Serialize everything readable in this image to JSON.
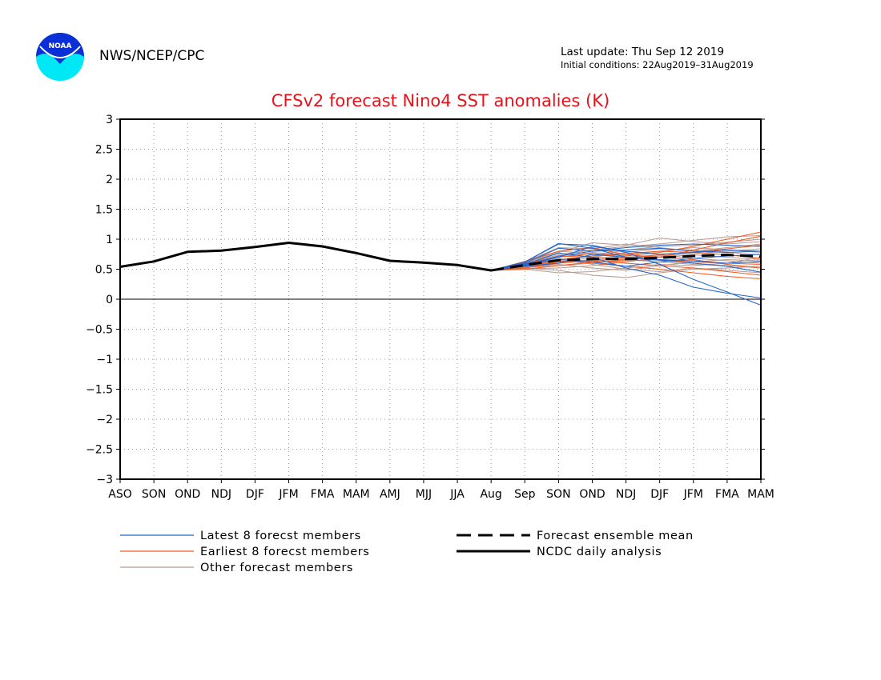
{
  "header": {
    "agency": "NWS/NCEP/CPC",
    "last_update": "Last update: Thu Sep 12 2019",
    "initial_conditions": "Initial conditions: 22Aug2019–31Aug2019",
    "logo_icon": "noaa-logo-icon",
    "logo_text": "NOAA"
  },
  "chart_data": {
    "type": "line",
    "title": "CFSv2 forecast Nino4 SST anomalies (K)",
    "xlabel": "",
    "ylabel": "",
    "categories": [
      "ASO",
      "SON",
      "OND",
      "NDJ",
      "DJF",
      "JFM",
      "FMA",
      "MAM",
      "AMJ",
      "MJJ",
      "JJA",
      "Aug",
      "Sep",
      "SON",
      "OND",
      "NDJ",
      "DJF",
      "JFM",
      "FMA",
      "MAM"
    ],
    "ylim": [
      -3,
      3
    ],
    "yticks": [
      "3",
      "2.5",
      "2",
      "1.5",
      "1",
      "0.5",
      "0",
      "−0.5",
      "−1",
      "−1.5",
      "−2",
      "−2.5",
      "−3"
    ],
    "ytick_values": [
      3,
      2.5,
      2,
      1.5,
      1,
      0.5,
      0,
      -0.5,
      -1,
      -1.5,
      -2,
      -2.5,
      -3
    ],
    "grid": true,
    "reference_line": 0,
    "series": [
      {
        "name": "NCDC daily analysis",
        "style": "solid-thick",
        "color": "#000000",
        "x": [
          0,
          1,
          2,
          3,
          4,
          5,
          6,
          7,
          8,
          9,
          10,
          11
        ],
        "values": [
          0.54,
          0.63,
          0.79,
          0.81,
          0.87,
          0.94,
          0.88,
          0.77,
          0.64,
          0.61,
          0.57,
          0.48
        ]
      },
      {
        "name": "Forecast ensemble mean",
        "style": "dashed-thick",
        "color": "#000000",
        "x": [
          11,
          12,
          13,
          14,
          15,
          16,
          17,
          18,
          19
        ],
        "values": [
          0.48,
          0.57,
          0.65,
          0.67,
          0.67,
          0.69,
          0.72,
          0.74,
          0.71
        ]
      },
      {
        "name": "Latest 8 forecst members",
        "style": "thin",
        "color": "#2266cc",
        "members": [
          {
            "x": [
              11,
              12,
              13,
              14,
              15,
              16,
              17,
              18,
              19
            ],
            "values": [
              0.48,
              0.62,
              0.92,
              0.9,
              0.78,
              0.58,
              0.33,
              0.12,
              -0.1
            ]
          },
          {
            "x": [
              11,
              12,
              13,
              14,
              15,
              16,
              17,
              18,
              19
            ],
            "values": [
              0.48,
              0.58,
              0.77,
              0.7,
              0.52,
              0.4,
              0.2,
              0.1,
              0.02
            ]
          },
          {
            "x": [
              11,
              12,
              13,
              14,
              15,
              16,
              17,
              18,
              19
            ],
            "values": [
              0.48,
              0.6,
              0.85,
              0.8,
              0.82,
              0.85,
              0.8,
              0.78,
              0.8
            ]
          },
          {
            "x": [
              11,
              12,
              13,
              14,
              15,
              16,
              17,
              18,
              19
            ],
            "values": [
              0.48,
              0.55,
              0.6,
              0.75,
              0.7,
              0.65,
              0.6,
              0.55,
              0.45
            ]
          },
          {
            "x": [
              11,
              12,
              13,
              14,
              15,
              16,
              17,
              18,
              19
            ],
            "values": [
              0.48,
              0.62,
              0.93,
              0.85,
              0.7,
              0.66,
              0.64,
              0.6,
              0.63
            ]
          },
          {
            "x": [
              11,
              12,
              13,
              14,
              15,
              16,
              17,
              18,
              19
            ],
            "values": [
              0.48,
              0.57,
              0.7,
              0.88,
              0.8,
              0.75,
              0.78,
              0.82,
              0.8
            ]
          },
          {
            "x": [
              11,
              12,
              13,
              14,
              15,
              16,
              17,
              18,
              19
            ],
            "values": [
              0.48,
              0.59,
              0.66,
              0.62,
              0.55,
              0.62,
              0.68,
              0.72,
              0.75
            ]
          },
          {
            "x": [
              11,
              12,
              13,
              14,
              15,
              16,
              17,
              18,
              19
            ],
            "values": [
              0.48,
              0.56,
              0.72,
              0.8,
              0.86,
              0.9,
              0.92,
              0.9,
              0.88
            ]
          }
        ]
      },
      {
        "name": "Earliest 8 forecst members",
        "style": "thin",
        "color": "#f05a22",
        "members": [
          {
            "x": [
              11,
              12,
              13,
              14,
              15,
              16,
              17,
              18,
              19
            ],
            "values": [
              0.48,
              0.6,
              0.7,
              0.76,
              0.72,
              0.78,
              0.88,
              1.0,
              1.12
            ]
          },
          {
            "x": [
              11,
              12,
              13,
              14,
              15,
              16,
              17,
              18,
              19
            ],
            "values": [
              0.48,
              0.54,
              0.62,
              0.65,
              0.66,
              0.7,
              0.82,
              0.94,
              1.05
            ]
          },
          {
            "x": [
              11,
              12,
              13,
              14,
              15,
              16,
              17,
              18,
              19
            ],
            "values": [
              0.48,
              0.52,
              0.6,
              0.64,
              0.6,
              0.56,
              0.52,
              0.46,
              0.4
            ]
          },
          {
            "x": [
              11,
              12,
              13,
              14,
              15,
              16,
              17,
              18,
              19
            ],
            "values": [
              0.48,
              0.63,
              0.8,
              0.86,
              0.74,
              0.7,
              0.66,
              0.58,
              0.52
            ]
          },
          {
            "x": [
              11,
              12,
              13,
              14,
              15,
              16,
              17,
              18,
              19
            ],
            "values": [
              0.48,
              0.58,
              0.72,
              0.7,
              0.68,
              0.74,
              0.78,
              0.84,
              0.9
            ]
          },
          {
            "x": [
              11,
              12,
              13,
              14,
              15,
              16,
              17,
              18,
              19
            ],
            "values": [
              0.48,
              0.5,
              0.56,
              0.62,
              0.64,
              0.66,
              0.62,
              0.6,
              0.58
            ]
          },
          {
            "x": [
              11,
              12,
              13,
              14,
              15,
              16,
              17,
              18,
              19
            ],
            "values": [
              0.48,
              0.56,
              0.66,
              0.72,
              0.76,
              0.8,
              0.78,
              0.74,
              0.68
            ]
          },
          {
            "x": [
              11,
              12,
              13,
              14,
              15,
              16,
              17,
              18,
              19
            ],
            "values": [
              0.48,
              0.55,
              0.64,
              0.6,
              0.55,
              0.5,
              0.44,
              0.38,
              0.34
            ]
          }
        ]
      },
      {
        "name": "Other forecast members",
        "style": "thin",
        "color": "#b89a92",
        "members": [
          {
            "x": [
              11,
              12,
              13,
              14,
              15,
              16,
              17,
              18,
              19
            ],
            "values": [
              0.48,
              0.56,
              0.66,
              0.72,
              0.82,
              0.88,
              0.9,
              0.95,
              1.0
            ]
          },
          {
            "x": [
              11,
              12,
              13,
              14,
              15,
              16,
              17,
              18,
              19
            ],
            "values": [
              0.48,
              0.52,
              0.48,
              0.4,
              0.36,
              0.44,
              0.5,
              0.52,
              0.55
            ]
          },
          {
            "x": [
              11,
              12,
              13,
              14,
              15,
              16,
              17,
              18,
              19
            ],
            "values": [
              0.48,
              0.6,
              0.78,
              0.94,
              0.9,
              1.02,
              0.96,
              0.92,
              0.96
            ]
          },
          {
            "x": [
              11,
              12,
              13,
              14,
              15,
              16,
              17,
              18,
              19
            ],
            "values": [
              0.48,
              0.54,
              0.58,
              0.52,
              0.48,
              0.56,
              0.62,
              0.66,
              0.64
            ]
          },
          {
            "x": [
              11,
              12,
              13,
              14,
              15,
              16,
              17,
              18,
              19
            ],
            "values": [
              0.48,
              0.58,
              0.7,
              0.78,
              0.74,
              0.8,
              0.86,
              0.82,
              0.78
            ]
          },
          {
            "x": [
              11,
              12,
              13,
              14,
              15,
              16,
              17,
              18,
              19
            ],
            "values": [
              0.48,
              0.5,
              0.44,
              0.46,
              0.52,
              0.58,
              0.56,
              0.6,
              0.7
            ]
          },
          {
            "x": [
              11,
              12,
              13,
              14,
              15,
              16,
              17,
              18,
              19
            ],
            "values": [
              0.48,
              0.62,
              0.86,
              0.84,
              0.92,
              0.86,
              0.8,
              0.86,
              0.92
            ]
          },
          {
            "x": [
              11,
              12,
              13,
              14,
              15,
              16,
              17,
              18,
              19
            ],
            "values": [
              0.48,
              0.55,
              0.62,
              0.66,
              0.7,
              0.74,
              0.68,
              0.64,
              0.6
            ]
          },
          {
            "x": [
              11,
              12,
              13,
              14,
              15,
              16,
              17,
              18,
              19
            ],
            "values": [
              0.48,
              0.57,
              0.68,
              0.58,
              0.5,
              0.46,
              0.52,
              0.48,
              0.44
            ]
          },
          {
            "x": [
              11,
              12,
              13,
              14,
              15,
              16,
              17,
              18,
              19
            ],
            "values": [
              0.48,
              0.59,
              0.74,
              0.82,
              0.88,
              0.92,
              0.98,
              1.04,
              1.06
            ]
          },
          {
            "x": [
              11,
              12,
              13,
              14,
              15,
              16,
              17,
              18,
              19
            ],
            "values": [
              0.48,
              0.53,
              0.56,
              0.6,
              0.66,
              0.62,
              0.58,
              0.56,
              0.52
            ]
          },
          {
            "x": [
              11,
              12,
              13,
              14,
              15,
              16,
              17,
              18,
              19
            ],
            "values": [
              0.48,
              0.61,
              0.8,
              0.76,
              0.68,
              0.72,
              0.76,
              0.8,
              0.84
            ]
          },
          {
            "x": [
              11,
              12,
              13,
              14,
              15,
              16,
              17,
              18,
              19
            ],
            "values": [
              0.48,
              0.55,
              0.6,
              0.7,
              0.78,
              0.84,
              0.82,
              0.78,
              0.74
            ]
          },
          {
            "x": [
              11,
              12,
              13,
              14,
              15,
              16,
              17,
              18,
              19
            ],
            "values": [
              0.48,
              0.51,
              0.52,
              0.56,
              0.62,
              0.7,
              0.74,
              0.7,
              0.66
            ]
          }
        ]
      }
    ],
    "legend": {
      "placement": "bottom",
      "entries": [
        {
          "label": "Latest 8 forecst members",
          "style": "thin",
          "color": "#2266cc"
        },
        {
          "label": "Earliest 8 forecst members",
          "style": "thin",
          "color": "#f05a22"
        },
        {
          "label": "Other forecast members",
          "style": "thin",
          "color": "#b89a92"
        },
        {
          "label": "Forecast ensemble mean",
          "style": "dashed-thick",
          "color": "#000000"
        },
        {
          "label": "NCDC daily analysis",
          "style": "solid-thick",
          "color": "#000000"
        }
      ]
    }
  }
}
